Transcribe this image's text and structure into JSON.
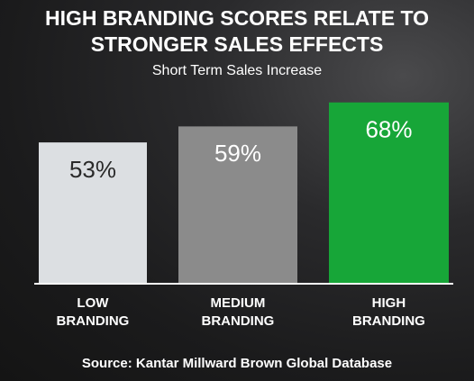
{
  "chart_data": {
    "type": "bar",
    "title": "HIGH BRANDING SCORES RELATE TO STRONGER SALES EFFECTS",
    "subtitle": "Short Term Sales Increase",
    "categories": [
      "LOW BRANDING",
      "MEDIUM BRANDING",
      "HIGH BRANDING"
    ],
    "values": [
      53,
      59,
      68
    ],
    "value_labels": [
      "53%",
      "59%",
      "68%"
    ],
    "colors": [
      "#dcdfe2",
      "#8b8b8b",
      "#17a638"
    ],
    "label_colors": [
      "#2a2a2a",
      "#ffffff",
      "#ffffff"
    ],
    "source": "Source: Kantar Millward Brown Global Database"
  }
}
